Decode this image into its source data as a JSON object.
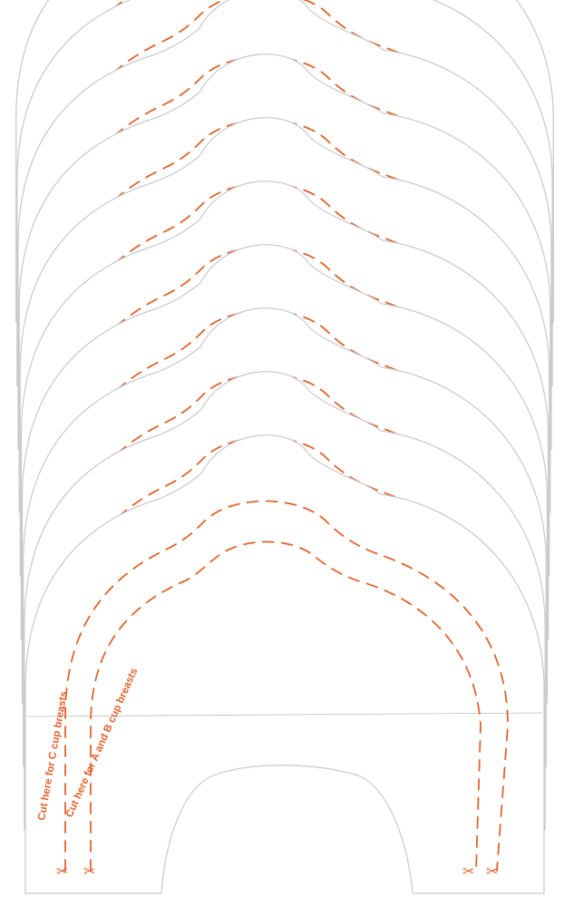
{
  "labels": {
    "cut_c": "Cut here for C cup breasts",
    "cut_ab": "Cut here for A and B cup breasts"
  },
  "icons": {
    "scissors": "scissors-icon"
  },
  "colors": {
    "cut_line": "#e0632d",
    "label_text": "#e0632d",
    "sheet": "#ffffff"
  },
  "stack_count": 10
}
